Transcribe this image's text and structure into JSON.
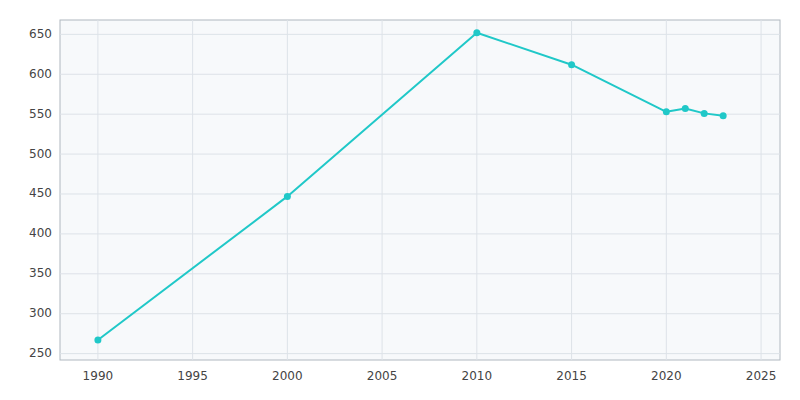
{
  "chart_data": {
    "type": "line",
    "x": [
      1990,
      2000,
      2010,
      2015,
      2020,
      2021,
      2022,
      2023
    ],
    "values": [
      267,
      447,
      652,
      612,
      553,
      557,
      551,
      548
    ],
    "color": "#20c8c8",
    "marker": "circle",
    "xlim": [
      1988,
      2026
    ],
    "ylim": [
      242,
      668
    ],
    "xticks": [
      1990,
      1995,
      2000,
      2005,
      2010,
      2015,
      2020,
      2025
    ],
    "yticks": [
      250,
      300,
      350,
      400,
      450,
      500,
      550,
      600,
      650
    ],
    "grid": true
  }
}
